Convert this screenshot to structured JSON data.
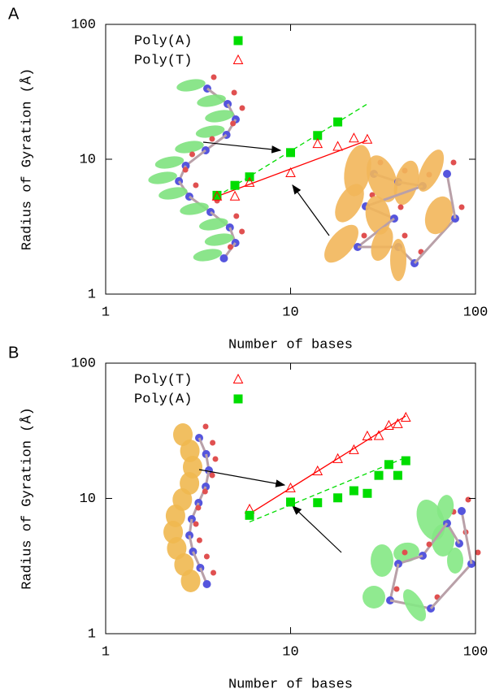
{
  "chart_data": [
    {
      "type": "scatter",
      "panel": "A",
      "xlabel": "Number of bases",
      "ylabel": "Radius of Gyration (Å)",
      "xscale": "log",
      "yscale": "log",
      "xlim": [
        1,
        100
      ],
      "ylim": [
        1,
        100
      ],
      "xticks": [
        1,
        10,
        100
      ],
      "yticks": [
        1,
        10,
        100
      ],
      "legend": "top-left",
      "series": [
        {
          "name": "Poly(A)",
          "color": "#00dd00",
          "marker": "square",
          "x": [
            4,
            5,
            6,
            10,
            14,
            18
          ],
          "values": [
            5.4,
            6.4,
            7.4,
            11.2,
            15,
            18.9
          ]
        },
        {
          "name": "Poly(T)",
          "color": "#ff0000",
          "marker": "triangle",
          "x": [
            4,
            5,
            6,
            10,
            14,
            18,
            22,
            26
          ],
          "values": [
            5.3,
            5.3,
            6.7,
            7.9,
            13,
            12.4,
            14.3,
            14
          ]
        }
      ],
      "fits": [
        {
          "color": "#00dd00",
          "dashed": true,
          "x": [
            4,
            26
          ],
          "values": [
            5.3,
            25.7
          ]
        },
        {
          "color": "#ff0000",
          "dashed": false,
          "x": [
            4,
            26
          ],
          "values": [
            5.3,
            13.8
          ]
        }
      ]
    },
    {
      "type": "scatter",
      "panel": "B",
      "xlabel": "Number of bases",
      "ylabel": "Radius of Gyration (Å)",
      "xscale": "log",
      "yscale": "log",
      "xlim": [
        1,
        100
      ],
      "ylim": [
        1,
        100
      ],
      "xticks": [
        1,
        10,
        100
      ],
      "yticks": [
        1,
        10,
        100
      ],
      "legend": "top-left",
      "series": [
        {
          "name": "Poly(T)",
          "color": "#ff0000",
          "marker": "triangle",
          "x": [
            6,
            10,
            14,
            18,
            22,
            26,
            30,
            34,
            38,
            42
          ],
          "values": [
            8.3,
            11.9,
            15.9,
            19.6,
            22.8,
            28.8,
            29,
            34.5,
            35.5,
            39.6
          ]
        },
        {
          "name": "Poly(A)",
          "color": "#00dd00",
          "marker": "square",
          "x": [
            6,
            10,
            14,
            18,
            22,
            26,
            30,
            34,
            38,
            42
          ],
          "values": [
            7.5,
            9.4,
            9.3,
            10.1,
            11.4,
            10.9,
            14.8,
            17.8,
            14.8,
            19
          ]
        }
      ],
      "fits": [
        {
          "color": "#ff0000",
          "dashed": false,
          "x": [
            6,
            42
          ],
          "values": [
            7.7,
            40.7
          ]
        },
        {
          "color": "#00dd00",
          "dashed": true,
          "x": [
            6,
            42
          ],
          "values": [
            6.7,
            20.1
          ]
        }
      ]
    }
  ]
}
